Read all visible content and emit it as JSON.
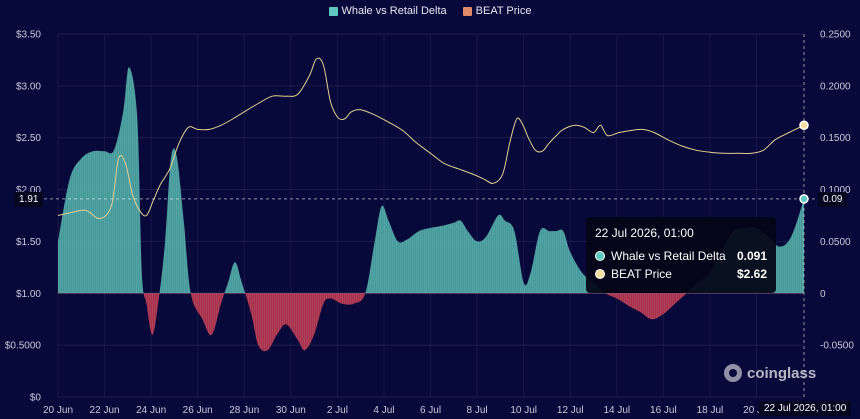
{
  "legend": {
    "items": [
      {
        "label": "Whale vs Retail Delta",
        "color": "#5fc8c0"
      },
      {
        "label": "BEAT Price",
        "color": "#e08a66"
      }
    ]
  },
  "crosshair": {
    "left_value": "1.91",
    "right_value": "0.09",
    "x_label": "22 Jul 2026, 01:00"
  },
  "tooltip": {
    "title": "22 Jul 2026, 01:00",
    "rows": [
      {
        "name": "Whale vs Retail Delta",
        "value": "0.091",
        "color": "#5fc8c0"
      },
      {
        "name": "BEAT Price",
        "value": "$2.62",
        "color": "#f4dda0"
      }
    ]
  },
  "watermark": "coinglass",
  "colors": {
    "positive_fill": "#4aa9a4",
    "negative_fill": "#b8334b",
    "price_line": "#e5cf90",
    "background": "#08093b"
  },
  "chart_data": {
    "type": "area",
    "x_ticks": [
      "20 Jun",
      "22 Jun",
      "24 Jun",
      "26 Jun",
      "28 Jun",
      "30 Jun",
      "2 Jul",
      "4 Jul",
      "6 Jul",
      "8 Jul",
      "10 Jul",
      "12 Jul",
      "14 Jul",
      "16 Jul",
      "18 Jul",
      "20 Jul"
    ],
    "x_range_days": [
      0,
      32.04
    ],
    "left_axis": {
      "ticks": [
        "$3.50",
        "$3.00",
        "$2.50",
        "$2.00",
        "$1.50",
        "$1.00",
        "$0.5000",
        "$0"
      ],
      "range": [
        0,
        3.5
      ]
    },
    "right_axis": {
      "ticks": [
        "0.2500",
        "0.2000",
        "0.1500",
        "0.1000",
        "0.0500",
        "0",
        "-0.0500"
      ],
      "range": [
        -0.1,
        0.25
      ]
    },
    "series": [
      {
        "name": "Whale vs Retail Delta",
        "axis": "right",
        "points": [
          [
            0,
            0.05
          ],
          [
            0.5,
            0.11
          ],
          [
            1,
            0.13
          ],
          [
            1.5,
            0.137
          ],
          [
            2,
            0.137
          ],
          [
            2.4,
            0.138
          ],
          [
            2.8,
            0.175
          ],
          [
            3.05,
            0.218
          ],
          [
            3.4,
            0.17
          ],
          [
            3.6,
            0.02
          ],
          [
            3.8,
            -0.01
          ],
          [
            4.05,
            -0.04
          ],
          [
            4.3,
            -0.01
          ],
          [
            4.6,
            0.05
          ],
          [
            4.85,
            0.13
          ],
          [
            5.1,
            0.132
          ],
          [
            5.4,
            0.07
          ],
          [
            5.7,
            0.0
          ],
          [
            6.2,
            -0.025
          ],
          [
            6.6,
            -0.04
          ],
          [
            7.0,
            -0.01
          ],
          [
            7.3,
            0.01
          ],
          [
            7.6,
            0.03
          ],
          [
            7.9,
            0.01
          ],
          [
            8.3,
            -0.02
          ],
          [
            8.6,
            -0.05
          ],
          [
            9.0,
            -0.055
          ],
          [
            9.4,
            -0.04
          ],
          [
            9.8,
            -0.03
          ],
          [
            10.3,
            -0.045
          ],
          [
            10.6,
            -0.055
          ],
          [
            11.0,
            -0.04
          ],
          [
            11.4,
            -0.01
          ],
          [
            11.7,
            -0.005
          ],
          [
            12.2,
            -0.01
          ],
          [
            12.7,
            -0.01
          ],
          [
            13.2,
            0.0
          ],
          [
            13.6,
            0.05
          ],
          [
            13.9,
            0.084
          ],
          [
            14.2,
            0.07
          ],
          [
            14.6,
            0.05
          ],
          [
            15.0,
            0.052
          ],
          [
            15.5,
            0.06
          ],
          [
            16.0,
            0.063
          ],
          [
            16.5,
            0.065
          ],
          [
            17.0,
            0.068
          ],
          [
            17.3,
            0.07
          ],
          [
            17.6,
            0.06
          ],
          [
            18.0,
            0.05
          ],
          [
            18.4,
            0.055
          ],
          [
            18.9,
            0.075
          ],
          [
            19.2,
            0.07
          ],
          [
            19.6,
            0.06
          ],
          [
            20.0,
            0.01
          ],
          [
            20.3,
            0.02
          ],
          [
            20.7,
            0.06
          ],
          [
            21.1,
            0.06
          ],
          [
            21.4,
            0.06
          ],
          [
            21.7,
            0.06
          ],
          [
            22.0,
            0.04
          ],
          [
            22.5,
            0.02
          ],
          [
            23.0,
            0.01
          ],
          [
            23.5,
            0.0
          ],
          [
            24.0,
            -0.005
          ],
          [
            24.5,
            -0.012
          ],
          [
            25.0,
            -0.018
          ],
          [
            25.5,
            -0.025
          ],
          [
            26.0,
            -0.02
          ],
          [
            26.5,
            -0.01
          ],
          [
            27.0,
            0.0
          ],
          [
            27.5,
            0.01
          ],
          [
            28.0,
            0.02
          ],
          [
            28.5,
            0.04
          ],
          [
            29.0,
            0.06
          ],
          [
            29.5,
            0.063
          ],
          [
            30.0,
            0.063
          ],
          [
            30.5,
            0.055
          ],
          [
            31.0,
            0.045
          ],
          [
            31.5,
            0.055
          ],
          [
            32.04,
            0.091
          ]
        ]
      },
      {
        "name": "BEAT Price",
        "axis": "left",
        "points": [
          [
            0,
            1.75
          ],
          [
            0.6,
            1.78
          ],
          [
            1.2,
            1.8
          ],
          [
            1.8,
            1.72
          ],
          [
            2.3,
            1.85
          ],
          [
            2.6,
            2.3
          ],
          [
            2.9,
            2.25
          ],
          [
            3.2,
            1.95
          ],
          [
            3.5,
            1.8
          ],
          [
            3.8,
            1.75
          ],
          [
            4.1,
            1.9
          ],
          [
            4.4,
            2.05
          ],
          [
            4.8,
            2.2
          ],
          [
            5.2,
            2.45
          ],
          [
            5.6,
            2.6
          ],
          [
            6.0,
            2.58
          ],
          [
            6.5,
            2.58
          ],
          [
            7.0,
            2.62
          ],
          [
            7.5,
            2.68
          ],
          [
            8.0,
            2.75
          ],
          [
            8.6,
            2.83
          ],
          [
            9.2,
            2.9
          ],
          [
            9.8,
            2.9
          ],
          [
            10.3,
            2.92
          ],
          [
            10.8,
            3.1
          ],
          [
            11.1,
            3.26
          ],
          [
            11.4,
            3.2
          ],
          [
            11.7,
            2.85
          ],
          [
            12.0,
            2.7
          ],
          [
            12.3,
            2.68
          ],
          [
            12.6,
            2.75
          ],
          [
            13.0,
            2.77
          ],
          [
            13.6,
            2.72
          ],
          [
            14.2,
            2.65
          ],
          [
            14.8,
            2.57
          ],
          [
            15.4,
            2.45
          ],
          [
            16.0,
            2.35
          ],
          [
            16.6,
            2.25
          ],
          [
            17.2,
            2.2
          ],
          [
            17.8,
            2.15
          ],
          [
            18.3,
            2.1
          ],
          [
            18.7,
            2.06
          ],
          [
            19.1,
            2.15
          ],
          [
            19.4,
            2.45
          ],
          [
            19.7,
            2.68
          ],
          [
            19.95,
            2.63
          ],
          [
            20.2,
            2.5
          ],
          [
            20.5,
            2.38
          ],
          [
            20.8,
            2.37
          ],
          [
            21.1,
            2.45
          ],
          [
            21.4,
            2.52
          ],
          [
            21.7,
            2.58
          ],
          [
            22.2,
            2.62
          ],
          [
            22.6,
            2.6
          ],
          [
            23.0,
            2.55
          ],
          [
            23.3,
            2.62
          ],
          [
            23.6,
            2.52
          ],
          [
            24.1,
            2.55
          ],
          [
            24.6,
            2.57
          ],
          [
            25.1,
            2.58
          ],
          [
            25.6,
            2.55
          ],
          [
            26.2,
            2.48
          ],
          [
            26.8,
            2.42
          ],
          [
            27.4,
            2.38
          ],
          [
            28.0,
            2.36
          ],
          [
            28.6,
            2.35
          ],
          [
            29.2,
            2.35
          ],
          [
            29.8,
            2.35
          ],
          [
            30.3,
            2.38
          ],
          [
            30.8,
            2.48
          ],
          [
            31.4,
            2.55
          ],
          [
            32.04,
            2.62
          ]
        ]
      }
    ],
    "grid": true,
    "legend_position": "top-center"
  }
}
